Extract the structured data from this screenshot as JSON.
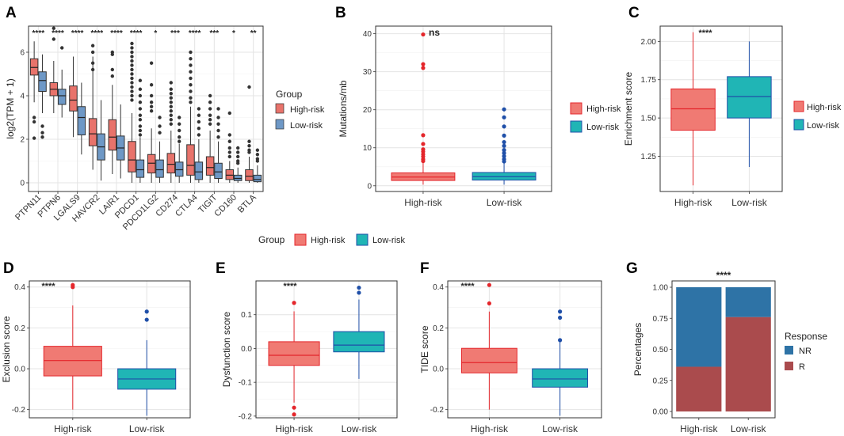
{
  "colors": {
    "high_boxA": "#e8736b",
    "low_boxA": "#6e98c6",
    "high_fill": "#f07a73",
    "high_line": "#e4262b",
    "low_fill": "#20b5b5",
    "low_line": "#1f4fa8",
    "nr": "#2e73a6",
    "r": "#aa4b4d",
    "panel_bg": "#ffffff",
    "grid": "#e4e4e4"
  },
  "legend_groups": {
    "title": "Group",
    "high": "High-risk",
    "low": "Low-risk"
  },
  "bottom_legend": {
    "title": "Group",
    "high": "High-risk",
    "low": "Low-risk"
  },
  "chart_data": [
    {
      "panel": "A",
      "type": "boxplot",
      "ylabel": "log2(TPM + 1)",
      "ylim": [
        -0.4,
        7.2
      ],
      "yticks": [
        0,
        2,
        4,
        6
      ],
      "categories": [
        "PTPN11",
        "PTPN6",
        "LGALS9",
        "HAVCR2",
        "LAIR1",
        "PDCD1",
        "PDCD1LG2",
        "CD274",
        "CTLA4",
        "TIGIT",
        "CD160",
        "BTLA"
      ],
      "significance": [
        "****",
        "****",
        "****",
        "****",
        "****",
        "****",
        "*",
        "***",
        "****",
        "***",
        "*",
        "**"
      ],
      "series": [
        {
          "name": "High-risk",
          "boxes": [
            {
              "lo": 3.7,
              "q1": 4.95,
              "med": 5.3,
              "q3": 5.7,
              "hi": 6.5,
              "out": [
                3.0,
                2.8,
                2.05
              ]
            },
            {
              "lo": 3.2,
              "q1": 4.0,
              "med": 4.3,
              "q3": 4.6,
              "hi": 5.6,
              "out": [
                6.6,
                7.1
              ]
            },
            {
              "lo": 2.1,
              "q1": 3.3,
              "med": 3.8,
              "q3": 4.45,
              "hi": 5.8,
              "out": []
            },
            {
              "lo": 0.6,
              "q1": 1.7,
              "med": 2.25,
              "q3": 2.95,
              "hi": 5.8,
              "out": [
                6.3,
                6.0,
                5.5,
                5.2
              ]
            },
            {
              "lo": 0.4,
              "q1": 1.5,
              "med": 2.1,
              "q3": 2.9,
              "hi": 4.5,
              "out": [
                6.0,
                5.9,
                5.2,
                4.9
              ]
            },
            {
              "lo": 0.0,
              "q1": 0.5,
              "med": 1.05,
              "q3": 1.9,
              "hi": 3.2,
              "out": [
                6.4,
                6.2,
                6.0,
                5.8,
                5.6,
                5.4,
                5.2,
                5.0,
                4.8,
                4.6,
                4.4,
                4.2,
                4.0,
                3.8
              ]
            },
            {
              "lo": 0.0,
              "q1": 0.45,
              "med": 0.9,
              "q3": 1.3,
              "hi": 2.5,
              "out": [
                5.5,
                4.5,
                4.0,
                3.7,
                3.5,
                3.3
              ]
            },
            {
              "lo": 0.0,
              "q1": 0.45,
              "med": 0.85,
              "q3": 1.35,
              "hi": 2.4,
              "out": [
                4.6,
                4.3,
                4.1,
                3.9,
                3.7,
                3.5,
                3.3,
                3.1,
                2.9,
                2.7
              ]
            },
            {
              "lo": 0.0,
              "q1": 0.35,
              "med": 0.8,
              "q3": 1.75,
              "hi": 3.5,
              "out": [
                6.0,
                5.7,
                5.4,
                5.1,
                4.8,
                4.5,
                4.2,
                3.9,
                3.7
              ]
            },
            {
              "lo": 0.0,
              "q1": 0.35,
              "med": 0.7,
              "q3": 1.2,
              "hi": 2.4,
              "out": [
                4.0,
                3.7,
                3.4,
                3.1,
                2.9,
                2.7
              ]
            },
            {
              "lo": 0.0,
              "q1": 0.15,
              "med": 0.35,
              "q3": 0.6,
              "hi": 1.0,
              "out": [
                3.2,
                2.2,
                1.9,
                1.6,
                1.4,
                1.2
              ]
            },
            {
              "lo": 0.0,
              "q1": 0.1,
              "med": 0.3,
              "q3": 0.6,
              "hi": 1.2,
              "out": [
                4.4,
                1.9,
                1.7,
                1.5,
                1.4
              ]
            }
          ]
        },
        {
          "name": "Low-risk",
          "boxes": [
            {
              "lo": 3.2,
              "q1": 4.2,
              "med": 4.7,
              "q3": 5.1,
              "hi": 5.9,
              "out": [
                2.6,
                2.3,
                2.1
              ]
            },
            {
              "lo": 3.0,
              "q1": 3.6,
              "med": 4.0,
              "q3": 4.3,
              "hi": 5.2,
              "out": [
                6.2
              ]
            },
            {
              "lo": 1.3,
              "q1": 2.2,
              "med": 3.0,
              "q3": 3.5,
              "hi": 4.6,
              "out": []
            },
            {
              "lo": 0.1,
              "q1": 1.05,
              "med": 1.65,
              "q3": 2.25,
              "hi": 3.8,
              "out": []
            },
            {
              "lo": 0.2,
              "q1": 1.05,
              "med": 1.6,
              "q3": 2.15,
              "hi": 3.6,
              "out": []
            },
            {
              "lo": 0.0,
              "q1": 0.25,
              "med": 0.6,
              "q3": 1.05,
              "hi": 2.1,
              "out": [
                4.7,
                4.3,
                4.0,
                3.7,
                3.4,
                3.1,
                2.9,
                2.6,
                2.4,
                2.2
              ]
            },
            {
              "lo": 0.0,
              "q1": 0.25,
              "med": 0.6,
              "q3": 1.05,
              "hi": 1.9,
              "out": [
                3.0,
                2.6,
                2.3
              ]
            },
            {
              "lo": 0.0,
              "q1": 0.3,
              "med": 0.6,
              "q3": 0.95,
              "hi": 1.8,
              "out": [
                3.0,
                2.7,
                2.4,
                2.1,
                1.9
              ]
            },
            {
              "lo": 0.0,
              "q1": 0.15,
              "med": 0.5,
              "q3": 0.95,
              "hi": 2.0,
              "out": [
                3.4,
                3.1,
                2.8,
                2.5,
                2.2
              ]
            },
            {
              "lo": 0.0,
              "q1": 0.2,
              "med": 0.5,
              "q3": 0.9,
              "hi": 1.9,
              "out": [
                3.4,
                3.0,
                2.7,
                2.4,
                2.1
              ]
            },
            {
              "lo": 0.0,
              "q1": 0.1,
              "med": 0.2,
              "q3": 0.35,
              "hi": 0.7,
              "out": [
                1.6,
                1.4,
                1.2,
                1.0,
                0.9
              ]
            },
            {
              "lo": 0.0,
              "q1": 0.05,
              "med": 0.15,
              "q3": 0.35,
              "hi": 0.8,
              "out": [
                1.5,
                1.3,
                1.1,
                1.0
              ]
            }
          ]
        }
      ]
    },
    {
      "panel": "B",
      "type": "boxplot",
      "ylabel": "Mutations/mb",
      "ylim": [
        -1.5,
        42
      ],
      "yticks": [
        0,
        10,
        20,
        30,
        40
      ],
      "categories": [
        "High-risk",
        "Low-risk"
      ],
      "significance": "ns",
      "boxes": [
        {
          "lo": 0.3,
          "q1": 1.4,
          "med": 2.3,
          "q3": 3.4,
          "hi": 6.0,
          "out": [
            39.8,
            32.0,
            31.0,
            13.3,
            11.0,
            9.6,
            9.0,
            8.3,
            7.7,
            7.0,
            6.5
          ]
        },
        {
          "lo": 0.3,
          "q1": 1.5,
          "med": 2.4,
          "q3": 3.5,
          "hi": 6.0,
          "out": [
            20.1,
            18.0,
            15.6,
            13.2,
            11.5,
            10.5,
            9.4,
            8.6,
            7.8,
            7.0,
            6.4
          ]
        }
      ]
    },
    {
      "panel": "C",
      "type": "boxplot",
      "ylabel": "Enrichment score",
      "ylim": [
        1.02,
        2.1
      ],
      "yticks": [
        1.25,
        1.5,
        1.75,
        2.0
      ],
      "categories": [
        "High-risk",
        "Low-risk"
      ],
      "significance": "****",
      "boxes": [
        {
          "lo": 1.06,
          "q1": 1.42,
          "med": 1.56,
          "q3": 1.69,
          "hi": 2.06,
          "out": []
        },
        {
          "lo": 1.18,
          "q1": 1.5,
          "med": 1.64,
          "q3": 1.77,
          "hi": 2.0,
          "out": []
        }
      ]
    },
    {
      "panel": "D",
      "type": "boxplot",
      "ylabel": "Exclusion score",
      "ylim": [
        -0.24,
        0.43
      ],
      "yticks": [
        -0.2,
        0.0,
        0.2,
        0.4
      ],
      "categories": [
        "High-risk",
        "Low-risk"
      ],
      "significance": "****",
      "boxes": [
        {
          "lo": -0.2,
          "q1": -0.035,
          "med": 0.04,
          "q3": 0.11,
          "hi": 0.31,
          "out": [
            0.41,
            0.4
          ]
        },
        {
          "lo": -0.23,
          "q1": -0.1,
          "med": -0.05,
          "q3": 0.0,
          "hi": 0.14,
          "out": [
            0.28,
            0.24
          ]
        }
      ]
    },
    {
      "panel": "E",
      "type": "boxplot",
      "ylabel": "Dysfunction score",
      "ylim": [
        -0.205,
        0.2
      ],
      "yticks": [
        -0.2,
        -0.1,
        0.0,
        0.1
      ],
      "categories": [
        "High-risk",
        "Low-risk"
      ],
      "significance": "****",
      "boxes": [
        {
          "lo": -0.16,
          "q1": -0.05,
          "med": -0.02,
          "q3": 0.02,
          "hi": 0.11,
          "out": [
            0.135,
            -0.175,
            -0.195
          ]
        },
        {
          "lo": -0.09,
          "q1": -0.01,
          "med": 0.01,
          "q3": 0.05,
          "hi": 0.145,
          "out": [
            0.18,
            0.165
          ]
        }
      ]
    },
    {
      "panel": "F",
      "type": "boxplot",
      "ylabel": "TIDE score",
      "ylim": [
        -0.24,
        0.43
      ],
      "yticks": [
        -0.2,
        0.0,
        0.2,
        0.4
      ],
      "categories": [
        "High-risk",
        "Low-risk"
      ],
      "significance": "****",
      "boxes": [
        {
          "lo": -0.2,
          "q1": -0.02,
          "med": 0.03,
          "q3": 0.1,
          "hi": 0.28,
          "out": [
            0.41,
            0.32
          ]
        },
        {
          "lo": -0.23,
          "q1": -0.09,
          "med": -0.05,
          "q3": 0.0,
          "hi": 0.13,
          "out": [
            0.28,
            0.25,
            0.14
          ]
        }
      ]
    },
    {
      "panel": "G",
      "type": "stacked_bar",
      "ylabel": "Percentages",
      "ylim": [
        0,
        1
      ],
      "yticks": [
        0.0,
        0.25,
        0.5,
        0.75,
        1.0
      ],
      "categories": [
        "High-risk",
        "Low-risk"
      ],
      "significance": "****",
      "legend_title": "Response",
      "series": [
        {
          "name": "R",
          "values": [
            0.36,
            0.76
          ]
        },
        {
          "name": "NR",
          "values": [
            0.64,
            0.24
          ]
        }
      ]
    }
  ]
}
